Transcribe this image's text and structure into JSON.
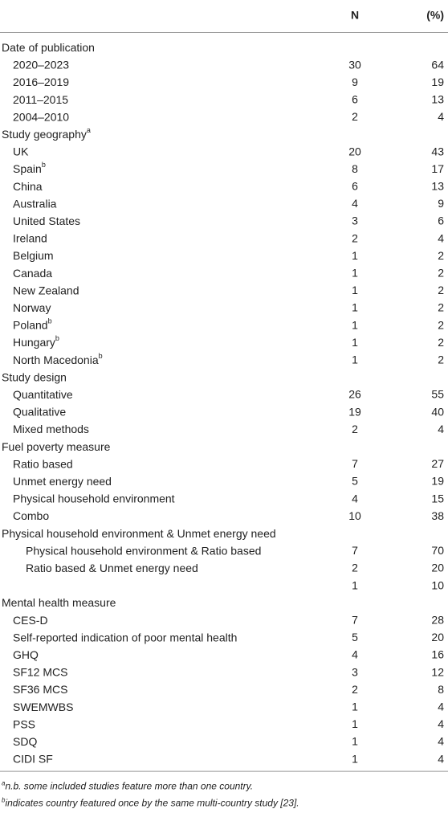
{
  "header": {
    "n": "N",
    "pct": "(%)"
  },
  "sections": [
    {
      "title": "Date of publication",
      "rows": [
        {
          "label": "2020–2023",
          "n": 30,
          "pct": 64
        },
        {
          "label": "2016–2019",
          "n": 9,
          "pct": 19
        },
        {
          "label": "2011–2015",
          "n": 6,
          "pct": 13
        },
        {
          "label": "2004–2010",
          "n": 2,
          "pct": 4
        }
      ]
    },
    {
      "title": "Study geography",
      "note": "a",
      "rows": [
        {
          "label": "UK",
          "n": 20,
          "pct": 43
        },
        {
          "label": "Spain",
          "note": "b",
          "n": 8,
          "pct": 17
        },
        {
          "label": "China",
          "n": 6,
          "pct": 13
        },
        {
          "label": "Australia",
          "n": 4,
          "pct": 9
        },
        {
          "label": "United States",
          "n": 3,
          "pct": 6
        },
        {
          "label": "Ireland",
          "n": 2,
          "pct": 4
        },
        {
          "label": "Belgium",
          "n": 1,
          "pct": 2
        },
        {
          "label": "Canada",
          "n": 1,
          "pct": 2
        },
        {
          "label": "New Zealand",
          "n": 1,
          "pct": 2
        },
        {
          "label": "Norway",
          "n": 1,
          "pct": 2
        },
        {
          "label": "Poland",
          "note": "b",
          "n": 1,
          "pct": 2
        },
        {
          "label": "Hungary",
          "note": "b",
          "n": 1,
          "pct": 2
        },
        {
          "label": "North Macedonia",
          "note": "b",
          "n": 1,
          "pct": 2
        }
      ]
    },
    {
      "title": "Study design",
      "rows": [
        {
          "label": "Quantitative",
          "n": 26,
          "pct": 55
        },
        {
          "label": "Qualitative",
          "n": 19,
          "pct": 40
        },
        {
          "label": "Mixed methods",
          "n": 2,
          "pct": 4
        }
      ]
    },
    {
      "title": "Fuel poverty measure",
      "rows": [
        {
          "label": "Ratio based",
          "n": 7,
          "pct": 27
        },
        {
          "label": "Unmet energy need",
          "n": 5,
          "pct": 19
        },
        {
          "label": "Physical household environment",
          "n": 4,
          "pct": 15
        },
        {
          "label": "Combo",
          "n": 10,
          "pct": 38
        }
      ],
      "subsection": {
        "title": "Physical household environment & Unmet energy need",
        "rows": [
          {
            "label": "Physical household environment & Ratio based",
            "n": 7,
            "pct": 70
          },
          {
            "label": "Ratio based & Unmet energy need",
            "n": 2,
            "pct": 20
          },
          {
            "label": null,
            "n": 1,
            "pct": 10
          }
        ]
      }
    },
    {
      "title": "Mental health measure",
      "rows": [
        {
          "label": "CES-D",
          "n": 7,
          "pct": 28
        },
        {
          "label": "Self-reported indication of poor mental health",
          "n": 5,
          "pct": 20
        },
        {
          "label": "GHQ",
          "n": 4,
          "pct": 16
        },
        {
          "label": "SF12 MCS",
          "n": 3,
          "pct": 12
        },
        {
          "label": "SF36 MCS",
          "n": 2,
          "pct": 8
        },
        {
          "label": "SWEMWBS",
          "n": 1,
          "pct": 4
        },
        {
          "label": "PSS",
          "n": 1,
          "pct": 4
        },
        {
          "label": "SDQ",
          "n": 1,
          "pct": 4
        },
        {
          "label": "CIDI SF",
          "n": 1,
          "pct": 4
        }
      ]
    }
  ],
  "footnotes": [
    {
      "mark": "a",
      "text": "n.b. some included studies feature more than one country."
    },
    {
      "mark": "b",
      "text": "indicates country featured once by the same multi-country study [23]."
    }
  ]
}
